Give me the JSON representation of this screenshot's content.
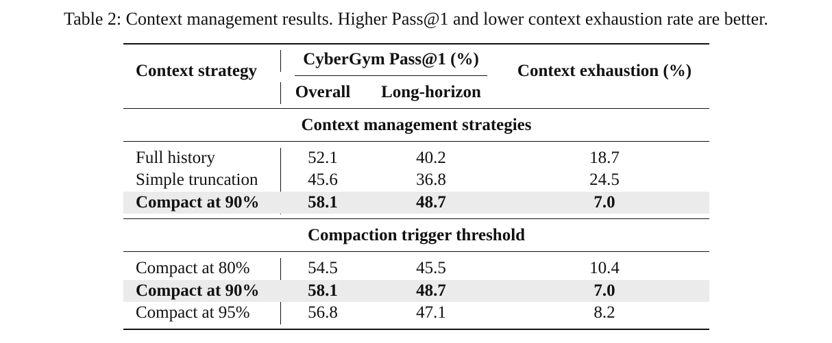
{
  "caption": "Table 2: Context management results. Higher Pass@1 and lower context exhaustion rate are better.",
  "header": {
    "strategy": "Context strategy",
    "pass_group": "CyberGym Pass@1 (%)",
    "overall": "Overall",
    "long_horizon": "Long-horizon",
    "exhaustion": "Context exhaustion (%)"
  },
  "sections": [
    {
      "title": "Context management strategies",
      "rows": [
        {
          "label": "Full history",
          "overall": "52.1",
          "long_horizon": "40.2",
          "exhaustion": "18.7",
          "highlight": false
        },
        {
          "label": "Simple truncation",
          "overall": "45.6",
          "long_horizon": "36.8",
          "exhaustion": "24.5",
          "highlight": false
        },
        {
          "label": "Compact at 90%",
          "overall": "58.1",
          "long_horizon": "48.7",
          "exhaustion": "7.0",
          "highlight": true
        }
      ]
    },
    {
      "title": "Compaction trigger threshold",
      "rows": [
        {
          "label": "Compact at 80%",
          "overall": "54.5",
          "long_horizon": "45.5",
          "exhaustion": "10.4",
          "highlight": false
        },
        {
          "label": "Compact at 90%",
          "overall": "58.1",
          "long_horizon": "48.7",
          "exhaustion": "7.0",
          "highlight": true
        },
        {
          "label": "Compact at 95%",
          "overall": "56.8",
          "long_horizon": "47.1",
          "exhaustion": "8.2",
          "highlight": false
        }
      ]
    }
  ],
  "colors": {
    "highlight_row": "#ebebeb",
    "rule": "#111111"
  }
}
